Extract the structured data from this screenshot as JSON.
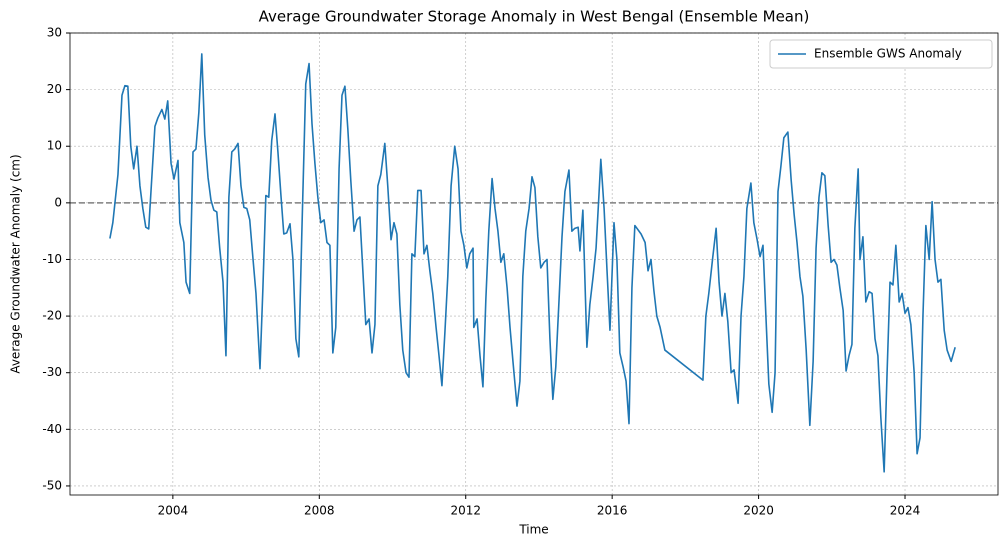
{
  "chart_data": {
    "type": "line",
    "title": "Average Groundwater Storage Anomaly in West Bengal (Ensemble Mean)",
    "xlabel": "Time",
    "ylabel": "Average Groundwater Anomaly (cm)",
    "x": [
      2002.28,
      2002.36,
      2002.5,
      2002.61,
      2002.69,
      2002.77,
      2002.85,
      2002.93,
      2003.02,
      2003.1,
      2003.18,
      2003.26,
      2003.34,
      2003.43,
      2003.51,
      2003.59,
      2003.7,
      2003.78,
      2003.86,
      2003.95,
      2004.03,
      2004.14,
      2004.19,
      2004.3,
      2004.36,
      2004.46,
      2004.55,
      2004.63,
      2004.71,
      2004.79,
      2004.87,
      2004.96,
      2005.04,
      2005.12,
      2005.2,
      2005.28,
      2005.37,
      2005.45,
      2005.53,
      2005.61,
      2005.69,
      2005.78,
      2005.86,
      2005.94,
      2006.02,
      2006.1,
      2006.19,
      2006.27,
      2006.38,
      2006.46,
      2006.54,
      2006.62,
      2006.7,
      2006.79,
      2006.87,
      2006.95,
      2007.03,
      2007.11,
      2007.2,
      2007.28,
      2007.36,
      2007.44,
      2007.52,
      2007.63,
      2007.72,
      2007.8,
      2007.88,
      2007.96,
      2008.04,
      2008.13,
      2008.21,
      2008.29,
      2008.37,
      2008.45,
      2008.54,
      2008.62,
      2008.7,
      2008.78,
      2008.86,
      2008.95,
      2009.03,
      2009.11,
      2009.19,
      2009.27,
      2009.36,
      2009.44,
      2009.52,
      2009.6,
      2009.68,
      2009.79,
      2009.87,
      2009.96,
      2010.04,
      2010.12,
      2010.2,
      2010.28,
      2010.37,
      2010.45,
      2010.53,
      2010.61,
      2010.69,
      2010.78,
      2010.86,
      2010.94,
      2011.02,
      2011.1,
      2011.19,
      2011.27,
      2011.35,
      2011.43,
      2011.51,
      2011.6,
      2011.7,
      2011.79,
      2011.87,
      2011.95,
      2012.03,
      2012.11,
      2012.2,
      2012.22,
      2012.31,
      2012.39,
      2012.47,
      2012.55,
      2012.63,
      2012.72,
      2012.8,
      2012.88,
      2012.96,
      2013.04,
      2013.13,
      2013.21,
      2013.29,
      2013.4,
      2013.48,
      2013.56,
      2013.64,
      2013.73,
      2013.81,
      2013.89,
      2013.97,
      2014.05,
      2014.14,
      2014.22,
      2014.3,
      2014.38,
      2014.46,
      2014.55,
      2014.63,
      2014.71,
      2014.82,
      2014.9,
      2014.98,
      2015.07,
      2015.12,
      2015.2,
      2015.31,
      2015.39,
      2015.48,
      2015.56,
      2015.64,
      2015.69,
      2015.78,
      2015.86,
      2015.94,
      2016.05,
      2016.13,
      2016.21,
      2016.3,
      2016.38,
      2016.46,
      2016.54,
      2016.62,
      2016.79,
      2016.9,
      2016.98,
      2017.06,
      2017.14,
      2017.22,
      2017.31,
      2017.44,
      2018.48,
      2018.56,
      2018.64,
      2018.75,
      2018.84,
      2018.92,
      2019.0,
      2019.08,
      2019.16,
      2019.25,
      2019.33,
      2019.44,
      2019.52,
      2019.6,
      2019.68,
      2019.79,
      2019.87,
      2019.96,
      2020.04,
      2020.12,
      2020.2,
      2020.28,
      2020.37,
      2020.45,
      2020.53,
      2020.61,
      2020.69,
      2020.8,
      2020.89,
      2020.97,
      2021.05,
      2021.13,
      2021.21,
      2021.3,
      2021.4,
      2021.49,
      2021.57,
      2021.65,
      2021.73,
      2021.81,
      2021.9,
      2021.98,
      2022.06,
      2022.14,
      2022.22,
      2022.31,
      2022.39,
      2022.47,
      2022.55,
      2022.63,
      2022.72,
      2022.77,
      2022.85,
      2022.93,
      2023.02,
      2023.1,
      2023.18,
      2023.26,
      2023.34,
      2023.43,
      2023.51,
      2023.59,
      2023.67,
      2023.75,
      2023.84,
      2023.92,
      2024.0,
      2024.08,
      2024.16,
      2024.25,
      2024.33,
      2024.41,
      2024.49,
      2024.57,
      2024.66,
      2024.74,
      2024.82,
      2024.9,
      2024.98,
      2025.07,
      2025.15,
      2025.26,
      2025.37
    ],
    "series": [
      {
        "name": "Ensemble GWS Anomaly",
        "color": "#1f77b4",
        "values": [
          -6.3,
          -3.5,
          5,
          19,
          20.7,
          20.6,
          10,
          6,
          10,
          3,
          -1,
          -4.3,
          -4.6,
          5,
          13.5,
          15,
          16.5,
          14.8,
          18,
          7,
          4.2,
          7.5,
          -3.5,
          -7,
          -14,
          -16,
          9,
          9.5,
          16,
          26.3,
          12,
          4.5,
          0.5,
          -1.3,
          -1.6,
          -8,
          -14,
          -27,
          1,
          9,
          9.5,
          10.5,
          3,
          -0.8,
          -1,
          -3,
          -10,
          -16,
          -29.3,
          -15,
          1.3,
          1,
          11,
          15.7,
          9,
          1.5,
          -5.5,
          -5.3,
          -3.7,
          -10,
          -24,
          -27.2,
          -6,
          21,
          24.6,
          14,
          7,
          1,
          -3.5,
          -3,
          -7,
          -7.5,
          -26.5,
          -22,
          6,
          19,
          20.6,
          13,
          4,
          -5,
          -3,
          -2.5,
          -12,
          -21.5,
          -20.5,
          -26.5,
          -21.5,
          3,
          5,
          10.5,
          3,
          -6.5,
          -3.5,
          -5.5,
          -18,
          -26,
          -30,
          -30.8,
          -9,
          -9.5,
          2.2,
          2.2,
          -9,
          -7.5,
          -12,
          -16,
          -22,
          -27,
          -32.3,
          -23,
          -13,
          3,
          10,
          6,
          -5,
          -7.5,
          -11.5,
          -9,
          -8,
          -22,
          -20.5,
          -27,
          -32.5,
          -17,
          -5,
          4.3,
          -1,
          -5,
          -10.5,
          -9,
          -15,
          -22,
          -28,
          -35.9,
          -31.5,
          -13,
          -5,
          -1,
          4.6,
          2.7,
          -6,
          -11.5,
          -10.5,
          -10,
          -24,
          -34.7,
          -29,
          -17,
          -6,
          2,
          5.8,
          -5,
          -4.5,
          -4.3,
          -8.5,
          -1.3,
          -25.5,
          -18,
          -13,
          -8,
          1.5,
          7.7,
          -1,
          -12,
          -22.5,
          -3.5,
          -10,
          -26.5,
          -29,
          -31.5,
          -39,
          -15,
          -4,
          -5.5,
          -7,
          -12,
          -10,
          -15.5,
          -20,
          -22,
          -26,
          -31.3,
          -20,
          -16,
          -9.5,
          -4.5,
          -14,
          -20,
          -16,
          -21,
          -30,
          -29.5,
          -35.4,
          -20,
          -13,
          -1,
          3.5,
          -3.5,
          -6.5,
          -9.5,
          -7.5,
          -20,
          -32,
          -37,
          -30,
          2,
          6.5,
          11.5,
          12.5,
          4,
          -2,
          -7,
          -13,
          -16.5,
          -26,
          -39.3,
          -28,
          -8,
          1,
          5.3,
          4.8,
          -4,
          -10.5,
          -10,
          -11,
          -15,
          -19,
          -29.7,
          -27,
          -25,
          -4.5,
          6,
          -10,
          -6,
          -17.5,
          -15.7,
          -16,
          -24,
          -27,
          -38,
          -47.5,
          -30,
          -14,
          -14.5,
          -7.5,
          -17.5,
          -16,
          -19.5,
          -18.5,
          -21.5,
          -30,
          -44.3,
          -41.5,
          -20,
          -4,
          -10,
          0.2,
          -10,
          -14,
          -13.5,
          -22.5,
          -26,
          -28,
          -25.5
        ]
      }
    ],
    "hline": 0,
    "hline_color": "#7f7f7f",
    "xlim": [
      2001.19,
      2026.54
    ],
    "xticks": [
      2004,
      2008,
      2012,
      2016,
      2020,
      2024
    ],
    "ylim": [
      -51.6,
      30
    ],
    "yticks": [
      -50,
      -40,
      -30,
      -20,
      -10,
      0,
      10,
      20,
      30
    ],
    "grid": true,
    "legend": "upper right"
  }
}
